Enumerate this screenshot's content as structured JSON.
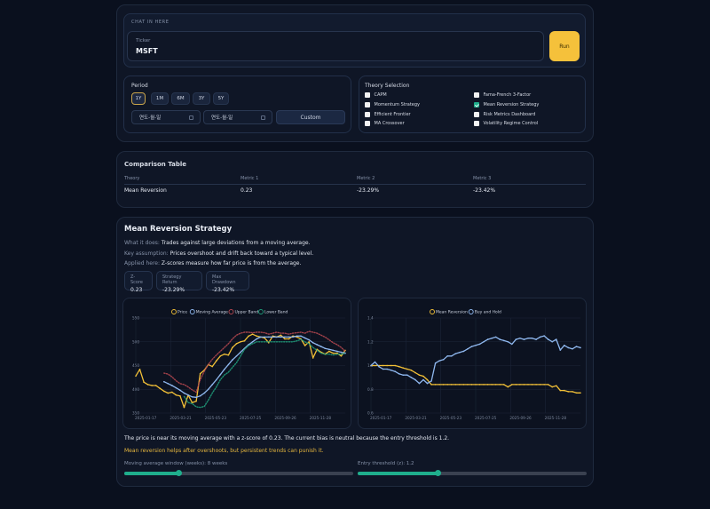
{
  "input_panel": {
    "section_label": "CHAT IN HERE",
    "ticker_label": "Ticker",
    "ticker_value": "MSFT",
    "run_label": "Run"
  },
  "period": {
    "title": "Period",
    "buttons": [
      "1Y",
      "1M",
      "6M",
      "3Y",
      "5Y"
    ],
    "active": "1Y",
    "start_date_placeholder": "연도-월-일",
    "end_date_placeholder": "연도-월-일",
    "custom_label": "Custom"
  },
  "theory_selection": {
    "title": "Theory Selection",
    "options": [
      {
        "label": "CAPM",
        "checked": false
      },
      {
        "label": "Momentum Strategy",
        "checked": false
      },
      {
        "label": "Efficient Frontier",
        "checked": false
      },
      {
        "label": "MA Crossover",
        "checked": false
      },
      {
        "label": "Fama-French 3-Factor",
        "checked": false
      },
      {
        "label": "Mean Reversion Strategy",
        "checked": true
      },
      {
        "label": "Risk Metrics Dashboard",
        "checked": false
      },
      {
        "label": "Volatility Regime Control",
        "checked": false
      }
    ]
  },
  "comparison": {
    "title": "Comparison Table",
    "headers": [
      "Theory",
      "Metric 1",
      "Metric 2",
      "Metric 3"
    ],
    "rows": [
      [
        "Mean Reversion",
        "0.23",
        "-23.29%",
        "-23.42%"
      ]
    ]
  },
  "strategy": {
    "title": "Mean Reversion Strategy",
    "what_key": "What it does: ",
    "what_val": "Trades against large deviations from a moving average.",
    "assume_key": "Key assumption: ",
    "assume_val": "Prices overshoot and drift back toward a typical level.",
    "applied_key": "Applied here: ",
    "applied_val": "Z-scores measure how far price is from the average.",
    "stats": [
      {
        "label": "Z-Score",
        "value": "0.23"
      },
      {
        "label": "Strategy Return",
        "value": "-23.29%"
      },
      {
        "label": "Max Drawdown",
        "value": "-23.42%"
      }
    ],
    "note": "The price is near its moving average with a z-score of 0.23. The current bias is neutral because the entry threshold is 1.2.",
    "warning": "Mean reversion helps after overshoots, but persistent trends can punish it.",
    "slider1_label": "Moving average window (weeks): 8 weeks",
    "slider1_pct": 24,
    "slider2_label": "Entry threshold (z): 1.2",
    "slider2_pct": 35
  },
  "colors": {
    "price": "#f2c037",
    "ma": "#8fb8ef",
    "upper": "#b3474f",
    "lower": "#1f9c7a",
    "accent": "#1fae8c",
    "run": "#f5c13b"
  },
  "chart_data": [
    {
      "type": "line",
      "title": "",
      "x_ticks": [
        "2025-01-17",
        "2025-03-21",
        "2025-05-23",
        "2025-07-25",
        "2025-09-26",
        "2025-11-28"
      ],
      "y_ticks": [
        350,
        400,
        450,
        500,
        550
      ],
      "ylim": [
        350,
        550
      ],
      "legend": [
        "Price",
        "Moving Average",
        "Upper Band",
        "Lower Band"
      ],
      "series": [
        {
          "name": "Price",
          "values": [
            428,
            442,
            415,
            410,
            408,
            408,
            402,
            396,
            392,
            394,
            388,
            386,
            362,
            388,
            372,
            375,
            433,
            440,
            452,
            448,
            460,
            470,
            474,
            472,
            488,
            496,
            500,
            502,
            512,
            516,
            512,
            510,
            508,
            498,
            512,
            510,
            514,
            506,
            506,
            512,
            510,
            506,
            492,
            500,
            466,
            484,
            478,
            474,
            480,
            476,
            476,
            470,
            482
          ]
        },
        {
          "name": "Moving Average",
          "values": [
            null,
            null,
            null,
            null,
            null,
            null,
            null,
            416,
            412,
            408,
            403,
            398,
            392,
            388,
            384,
            383,
            386,
            392,
            400,
            410,
            420,
            431,
            442,
            452,
            462,
            470,
            478,
            486,
            494,
            500,
            506,
            510,
            510,
            510,
            510,
            510,
            510,
            510,
            510,
            510,
            512,
            512,
            508,
            504,
            498,
            494,
            490,
            486,
            484,
            482,
            480,
            478,
            476
          ]
        },
        {
          "name": "Upper Band",
          "values": [
            null,
            null,
            null,
            null,
            null,
            null,
            null,
            434,
            432,
            426,
            418,
            412,
            410,
            405,
            399,
            394,
            420,
            438,
            452,
            463,
            472,
            480,
            488,
            496,
            506,
            514,
            518,
            520,
            520,
            519,
            520,
            520,
            519,
            516,
            518,
            520,
            518,
            518,
            516,
            518,
            519,
            520,
            518,
            522,
            520,
            518,
            514,
            510,
            504,
            498,
            494,
            488,
            480
          ]
        },
        {
          "name": "Lower Band",
          "values": [
            null,
            null,
            null,
            null,
            null,
            null,
            null,
            null,
            null,
            null,
            null,
            null,
            385,
            372,
            370,
            363,
            362,
            364,
            377,
            392,
            405,
            420,
            430,
            436,
            446,
            456,
            470,
            484,
            492,
            496,
            500,
            500,
            500,
            500,
            500,
            500,
            500,
            500,
            500,
            500,
            502,
            505,
            500,
            496,
            488,
            482,
            476,
            474,
            474,
            472,
            474,
            474,
            476
          ]
        }
      ]
    },
    {
      "type": "line",
      "title": "",
      "x_ticks": [
        "2025-01-17",
        "2025-03-21",
        "2025-05-23",
        "2025-07-25",
        "2025-09-26",
        "2025-11-28"
      ],
      "y_ticks": [
        0.6,
        0.8,
        1.0,
        1.2,
        1.4
      ],
      "ylim": [
        0.6,
        1.4
      ],
      "legend": [
        "Mean Reversion",
        "Buy and Hold"
      ],
      "series": [
        {
          "name": "Mean Reversion",
          "values": [
            1.0,
            1.0,
            1.0,
            1.0,
            1.0,
            1.0,
            1.0,
            0.99,
            0.98,
            0.97,
            0.96,
            0.94,
            0.92,
            0.91,
            0.88,
            0.84,
            0.84,
            0.84,
            0.84,
            0.84,
            0.84,
            0.84,
            0.84,
            0.84,
            0.84,
            0.84,
            0.84,
            0.84,
            0.84,
            0.84,
            0.84,
            0.84,
            0.84,
            0.84,
            0.82,
            0.84,
            0.84,
            0.84,
            0.84,
            0.84,
            0.84,
            0.84,
            0.84,
            0.84,
            0.84,
            0.82,
            0.83,
            0.79,
            0.79,
            0.78,
            0.78,
            0.77,
            0.77
          ]
        },
        {
          "name": "Buy and Hold",
          "values": [
            1.0,
            1.03,
            0.99,
            0.97,
            0.97,
            0.96,
            0.95,
            0.93,
            0.92,
            0.92,
            0.9,
            0.88,
            0.85,
            0.88,
            0.85,
            0.87,
            1.02,
            1.04,
            1.05,
            1.08,
            1.08,
            1.1,
            1.11,
            1.12,
            1.14,
            1.16,
            1.17,
            1.18,
            1.2,
            1.22,
            1.23,
            1.24,
            1.22,
            1.21,
            1.2,
            1.18,
            1.22,
            1.23,
            1.22,
            1.23,
            1.23,
            1.22,
            1.24,
            1.25,
            1.22,
            1.2,
            1.22,
            1.13,
            1.17,
            1.15,
            1.14,
            1.16,
            1.15
          ]
        }
      ]
    }
  ]
}
